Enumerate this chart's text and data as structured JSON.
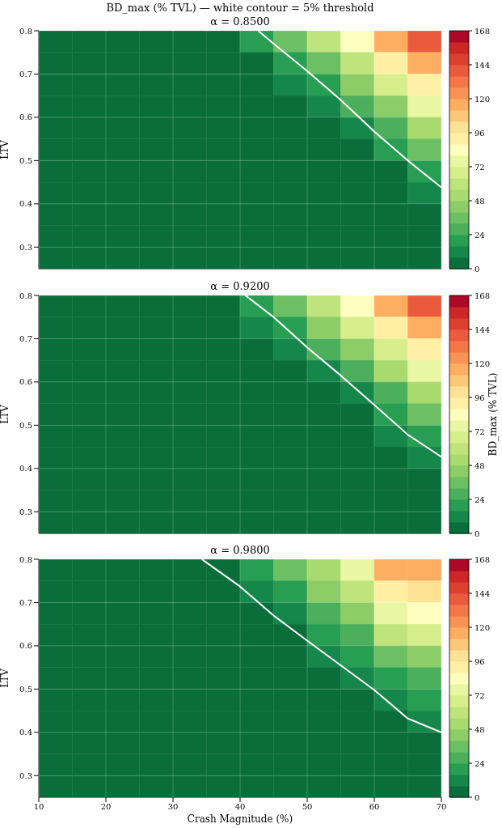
{
  "chart_data": [
    {
      "type": "heatmap",
      "title": "BD_max (% TVL) — white contour = 5% threshold",
      "subtitle": "α = 0.8500",
      "ylabel": "LTV",
      "clim": [
        0,
        168
      ],
      "cticks": [
        0,
        24,
        48,
        72,
        96,
        120,
        144,
        168
      ],
      "x": [
        12.5,
        17.5,
        22.5,
        27.5,
        32.5,
        37.5,
        42.5,
        47.5,
        52.5,
        57.5,
        62.5,
        67.5
      ],
      "y": [
        0.775,
        0.725,
        0.675,
        0.625,
        0.575,
        0.525,
        0.475,
        0.425,
        0.375,
        0.325,
        0.275
      ],
      "cells": [
        [
          0,
          0,
          0,
          0,
          1,
          6,
          16,
          34,
          57,
          84,
          112,
          141
        ],
        [
          0,
          0,
          0,
          0,
          0,
          1,
          7,
          20,
          38,
          62,
          89,
          117
        ],
        [
          0,
          0,
          0,
          0,
          0,
          0,
          2,
          9,
          23,
          43,
          67,
          94
        ],
        [
          0,
          0,
          0,
          0,
          0,
          0,
          0,
          2,
          11,
          26,
          47,
          72
        ],
        [
          0,
          0,
          0,
          0,
          0,
          0,
          0,
          0,
          4,
          13,
          29,
          51
        ],
        [
          0,
          0,
          0,
          0,
          0,
          0,
          0,
          0,
          1,
          5,
          16,
          33
        ],
        [
          0,
          0,
          0,
          0,
          0,
          0,
          0,
          0,
          0,
          1,
          7,
          19
        ],
        [
          0,
          0,
          0,
          0,
          0,
          0,
          0,
          0,
          0,
          0,
          2,
          8
        ],
        [
          0,
          0,
          0,
          0,
          0,
          0,
          0,
          0,
          0,
          0,
          0,
          2
        ],
        [
          0,
          0,
          0,
          0,
          0,
          0,
          0,
          0,
          0,
          0,
          0,
          0
        ],
        [
          0,
          0,
          0,
          0,
          0,
          0,
          0,
          0,
          0,
          0,
          0,
          0
        ]
      ],
      "series": [
        {
          "type": "line",
          "color": "#ffffff",
          "x": [
            42.7,
            45,
            50,
            55,
            60,
            65,
            70
          ],
          "values": [
            0.8,
            0.77,
            0.707,
            0.64,
            0.567,
            0.5,
            0.438
          ]
        }
      ],
      "xlim": [
        10,
        70
      ],
      "xticks": [
        10,
        20,
        30,
        40,
        50,
        60,
        70
      ],
      "ylim": [
        0.25,
        0.8
      ],
      "yticks": [
        0.3,
        0.4,
        0.5,
        0.6,
        0.7,
        0.8
      ],
      "grid": true,
      "tick_labels": "y"
    },
    {
      "type": "heatmap",
      "title": "α = 0.9200",
      "ylabel": "LTV",
      "clabel": "BD_max (% TVL)",
      "clim": [
        0,
        168
      ],
      "cticks": [
        0,
        24,
        48,
        72,
        96,
        120,
        144,
        168
      ],
      "x": [
        12.5,
        17.5,
        22.5,
        27.5,
        32.5,
        37.5,
        42.5,
        47.5,
        52.5,
        57.5,
        62.5,
        67.5
      ],
      "y": [
        0.775,
        0.725,
        0.675,
        0.625,
        0.575,
        0.525,
        0.475,
        0.425,
        0.375,
        0.325,
        0.275
      ],
      "cells": [
        [
          0,
          0,
          0,
          0,
          1,
          7,
          18,
          36,
          60,
          87,
          116,
          138
        ],
        [
          0,
          0,
          0,
          0,
          0,
          2,
          8,
          22,
          41,
          65,
          92,
          114
        ],
        [
          0,
          0,
          0,
          0,
          0,
          0,
          2,
          10,
          25,
          45,
          70,
          93
        ],
        [
          0,
          0,
          0,
          0,
          0,
          0,
          0,
          3,
          12,
          28,
          49,
          72
        ],
        [
          0,
          0,
          0,
          0,
          0,
          0,
          0,
          1,
          4,
          14,
          31,
          51
        ],
        [
          0,
          0,
          0,
          0,
          0,
          0,
          0,
          0,
          1,
          6,
          17,
          33
        ],
        [
          0,
          0,
          0,
          0,
          0,
          0,
          0,
          0,
          0,
          2,
          8,
          19
        ],
        [
          0,
          0,
          0,
          0,
          0,
          0,
          0,
          0,
          0,
          0,
          2,
          9
        ],
        [
          0,
          0,
          0,
          0,
          0,
          0,
          0,
          0,
          0,
          0,
          0,
          2
        ],
        [
          0,
          0,
          0,
          0,
          0,
          0,
          0,
          0,
          0,
          0,
          0,
          0
        ],
        [
          0,
          0,
          0,
          0,
          0,
          0,
          0,
          0,
          0,
          0,
          0,
          0
        ]
      ],
      "series": [
        {
          "type": "line",
          "color": "#ffffff",
          "x": [
            40.8,
            45,
            50,
            55,
            60,
            65,
            70
          ],
          "values": [
            0.8,
            0.75,
            0.68,
            0.615,
            0.547,
            0.478,
            0.427
          ]
        }
      ],
      "xlim": [
        10,
        70
      ],
      "xticks": [
        10,
        20,
        30,
        40,
        50,
        60,
        70
      ],
      "ylim": [
        0.25,
        0.8
      ],
      "yticks": [
        0.3,
        0.4,
        0.5,
        0.6,
        0.7,
        0.8
      ],
      "grid": true,
      "tick_labels": "y"
    },
    {
      "type": "heatmap",
      "title": "α = 0.9800",
      "xlabel": "Crash Magnitude (%)",
      "ylabel": "LTV",
      "clim": [
        0,
        168
      ],
      "cticks": [
        0,
        24,
        48,
        72,
        96,
        120,
        144,
        168
      ],
      "x": [
        12.5,
        17.5,
        22.5,
        27.5,
        32.5,
        37.5,
        42.5,
        47.5,
        52.5,
        57.5,
        62.5,
        67.5
      ],
      "y": [
        0.775,
        0.725,
        0.675,
        0.625,
        0.575,
        0.525,
        0.475,
        0.425,
        0.375,
        0.325,
        0.275
      ],
      "cells": [
        [
          0,
          0,
          0,
          0,
          1,
          7,
          17,
          33,
          54,
          79,
          115,
          119
        ],
        [
          0,
          0,
          0,
          0,
          0,
          3,
          10,
          22,
          40,
          62,
          91,
          98
        ],
        [
          0,
          0,
          0,
          0,
          0,
          1,
          4,
          13,
          27,
          45,
          72,
          80
        ],
        [
          0,
          0,
          0,
          0,
          0,
          0,
          1,
          6,
          16,
          31,
          56,
          64
        ],
        [
          0,
          0,
          0,
          0,
          0,
          0,
          0,
          2,
          8,
          19,
          39,
          46
        ],
        [
          0,
          0,
          0,
          0,
          0,
          0,
          0,
          0,
          3,
          10,
          23,
          29
        ],
        [
          0,
          0,
          0,
          0,
          0,
          0,
          0,
          0,
          1,
          3,
          11,
          17
        ],
        [
          0,
          0,
          0,
          0,
          0,
          0,
          0,
          0,
          0,
          0,
          4,
          8
        ],
        [
          0,
          0,
          0,
          0,
          0,
          0,
          0,
          0,
          0,
          0,
          1,
          2
        ],
        [
          0,
          0,
          0,
          0,
          0,
          0,
          0,
          0,
          0,
          0,
          0,
          0
        ],
        [
          0,
          0,
          0,
          0,
          0,
          0,
          0,
          0,
          0,
          0,
          0,
          0
        ]
      ],
      "series": [
        {
          "type": "line",
          "color": "#ffffff",
          "x": [
            34.3,
            40,
            45,
            50,
            55,
            60,
            65,
            70
          ],
          "values": [
            0.8,
            0.737,
            0.67,
            0.612,
            0.555,
            0.498,
            0.432,
            0.4
          ]
        }
      ],
      "xlim": [
        10,
        70
      ],
      "xticks": [
        10,
        20,
        30,
        40,
        50,
        60,
        70
      ],
      "ylim": [
        0.25,
        0.8
      ],
      "yticks": [
        0.3,
        0.4,
        0.5,
        0.6,
        0.7,
        0.8
      ],
      "grid": true
    }
  ]
}
